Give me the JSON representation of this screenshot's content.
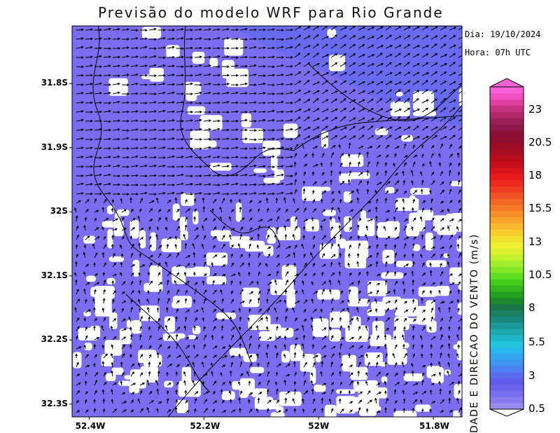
{
  "title": "Previsão do modelo WRF para Rio Grande",
  "info": {
    "dia": "Dia: 19/10/2024",
    "hora": "Hora: 07h UTC"
  },
  "colorbar": {
    "label": "DADE E DIRECAO DO VENTO (m/s)",
    "tick_labels": [
      "0.5",
      "3",
      "5.5",
      "8",
      "10.5",
      "13",
      "15.5",
      "18",
      "20.5",
      "23"
    ],
    "colors": [
      "#9b8cf0",
      "#8a7af0",
      "#7a6ef0",
      "#6c64ee",
      "#5f5cec",
      "#5a6cf0",
      "#4f80f2",
      "#3f94f0",
      "#32a6ee",
      "#28b8ec",
      "#22c4e0",
      "#20b8c8",
      "#1ea8b0",
      "#1c9898",
      "#1a8878",
      "#1a8060",
      "#1a7848",
      "#1c8a2c",
      "#22a020",
      "#30b81c",
      "#44cc1c",
      "#60dc20",
      "#80e828",
      "#a0ee30",
      "#c0f030",
      "#dcf030",
      "#f0f030",
      "#f4e030",
      "#f6cc30",
      "#f8b830",
      "#f8a42c",
      "#f6902a",
      "#f47c28",
      "#f26826",
      "#f05424",
      "#ee3c22",
      "#ee2a20",
      "#e81a1e",
      "#d8141c",
      "#c8101c",
      "#b80e1c",
      "#a80c20",
      "#9c0c28",
      "#900c30",
      "#8a1038",
      "#8c1848",
      "#9c2058",
      "#b02868",
      "#c83080",
      "#e040a0",
      "#f050c0",
      "#f860d8"
    ]
  },
  "axes": {
    "y_ticks": [
      {
        "label": "31.8S",
        "value": -31.8
      },
      {
        "label": "31.9S",
        "value": -31.9
      },
      {
        "label": "32S",
        "value": -32.0
      },
      {
        "label": "32.1S",
        "value": -32.1
      },
      {
        "label": "32.2S",
        "value": -32.2
      },
      {
        "label": "32.3S",
        "value": -32.3
      }
    ],
    "x_ticks": [
      {
        "label": "52.4W",
        "value": -52.4
      },
      {
        "label": "52.2W",
        "value": -52.2
      },
      {
        "label": "52W",
        "value": -52.0
      },
      {
        "label": "51.8W",
        "value": -51.8
      }
    ],
    "lon_range": [
      -52.43,
      -51.75
    ],
    "lat_range": [
      -32.32,
      -31.71
    ]
  },
  "colors": {
    "wind_low": "#7b6cf0",
    "wind_high": "#3f94f0",
    "calm": "#ffffff",
    "arrow": "#000000",
    "coast": "#000000"
  }
}
